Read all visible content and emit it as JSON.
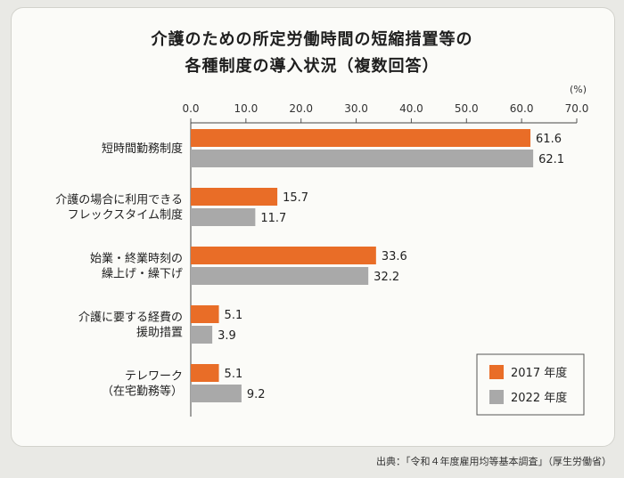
{
  "page": {
    "title_line1": "介護のための所定労働時間の短縮措置等の",
    "title_line2": "各種制度の導入状況（複数回答）",
    "source": "出典：「令和４年度雇用均等基本調査」（厚生労働省）"
  },
  "chart_data": {
    "type": "bar",
    "orientation": "horizontal",
    "unit_label": "(%)",
    "xlim": [
      0,
      70
    ],
    "ticks": [
      "0.0",
      "10.0",
      "20.0",
      "30.0",
      "40.0",
      "50.0",
      "60.0",
      "70.0"
    ],
    "categories": [
      [
        "短時間勤務制度"
      ],
      [
        "介護の場合に利用できる",
        "フレックスタイム制度"
      ],
      [
        "始業・終業時刻の",
        "繰上げ・繰下げ"
      ],
      [
        "介護に要する経費の",
        "援助措置"
      ],
      [
        "テレワーク",
        "（在宅勤務等）"
      ]
    ],
    "series": [
      {
        "name": "2017 年度",
        "color": "#e96d27",
        "values": [
          61.6,
          15.7,
          33.6,
          5.1,
          5.1
        ]
      },
      {
        "name": "2022 年度",
        "color": "#a9a9a9",
        "values": [
          62.1,
          11.7,
          32.2,
          3.9,
          9.2
        ]
      }
    ],
    "value_labels": [
      [
        "61.6",
        "15.7",
        "33.6",
        "5.1",
        "5.1"
      ],
      [
        "62.1",
        "11.7",
        "32.2",
        "3.9",
        "9.2"
      ]
    ],
    "legend_position": "bottom-right",
    "grid": false
  }
}
